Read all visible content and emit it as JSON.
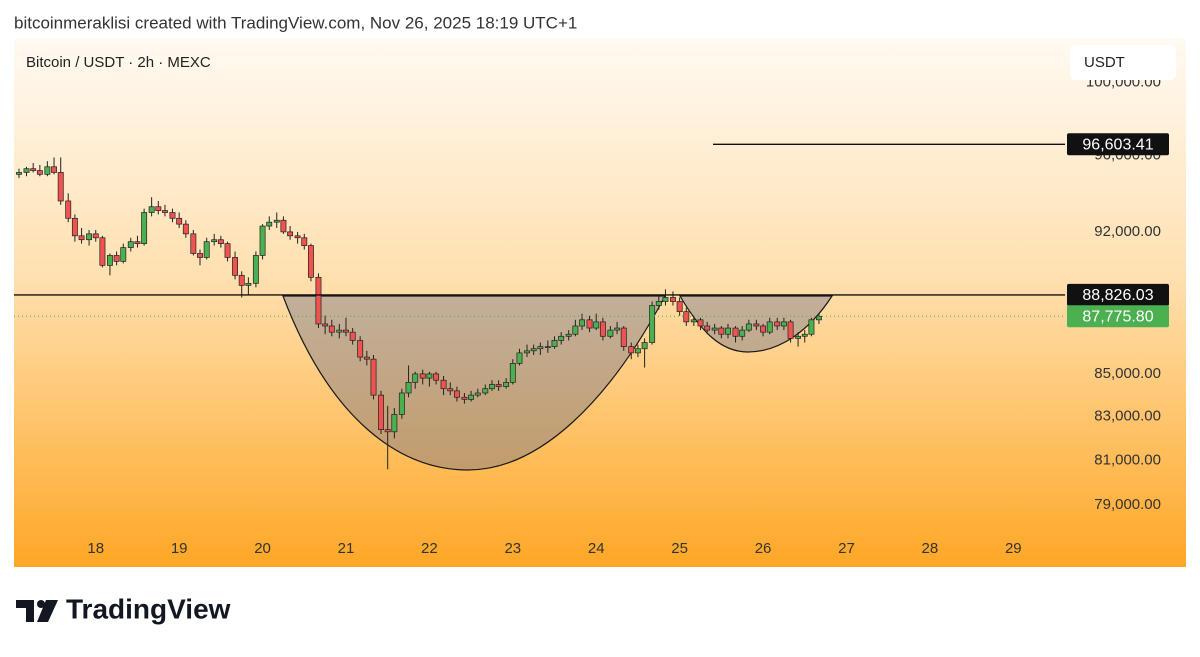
{
  "caption": "bitcoinmeraklisi created with TradingView.com, Nov 26, 2025 18:19 UTC+1",
  "brand": "TradingView",
  "chart_data": {
    "type": "candlestick",
    "title": "Bitcoin / USDT · 2h · MEXC",
    "currency": "USDT",
    "log_scale": true,
    "grid": false,
    "colors": {
      "up": "#4caf50",
      "down": "#ef5350",
      "outline": "#222222"
    },
    "xlim": [
      17.02,
      29.62
    ],
    "xticks": [
      18,
      19,
      20,
      21,
      22,
      23,
      24,
      25,
      26,
      27,
      28,
      29
    ],
    "ylim": [
      77700,
      102500
    ],
    "yticks": [
      {
        "value": 100000,
        "label": "100,000.00"
      },
      {
        "value": 96000,
        "label": "96,000.00"
      },
      {
        "value": 92000,
        "label": "92,000.00"
      },
      {
        "value": 85000,
        "label": "85,000.00"
      },
      {
        "value": 83000,
        "label": "83,000.00"
      },
      {
        "value": 81000,
        "label": "81,000.00"
      },
      {
        "value": 79000,
        "label": "79,000.00"
      }
    ],
    "lines": [
      {
        "value": 96603.41,
        "label": "96,603.41"
      },
      {
        "value": 88826.03,
        "label": "88,826.03"
      }
    ],
    "last_price": {
      "value": 87775.8,
      "label": "87,775.80"
    },
    "x": [
      17.08,
      17.17,
      17.25,
      17.33,
      17.42,
      17.5,
      17.58,
      17.67,
      17.75,
      17.83,
      17.92,
      18,
      18.08,
      18.17,
      18.25,
      18.33,
      18.42,
      18.5,
      18.58,
      18.67,
      18.75,
      18.83,
      18.92,
      19,
      19.08,
      19.17,
      19.25,
      19.33,
      19.42,
      19.5,
      19.58,
      19.67,
      19.75,
      19.83,
      19.92,
      20,
      20.08,
      20.17,
      20.25,
      20.33,
      20.42,
      20.5,
      20.58,
      20.67,
      20.75,
      20.83,
      20.92,
      21,
      21.08,
      21.17,
      21.25,
      21.33,
      21.42,
      21.5,
      21.58,
      21.67,
      21.75,
      21.83,
      21.92,
      22,
      22.08,
      22.17,
      22.25,
      22.33,
      22.42,
      22.5,
      22.58,
      22.67,
      22.75,
      22.83,
      22.92,
      23,
      23.08,
      23.17,
      23.25,
      23.33,
      23.42,
      23.5,
      23.58,
      23.67,
      23.75,
      23.83,
      23.92,
      24,
      24.08,
      24.17,
      24.25,
      24.33,
      24.42,
      24.5,
      24.58,
      24.67,
      24.75,
      24.83,
      24.92,
      25,
      25.08,
      25.17,
      25.25,
      25.33,
      25.42,
      25.5,
      25.58,
      25.67,
      25.75,
      25.83,
      25.92,
      26,
      26.08,
      26.17,
      26.25,
      26.33,
      26.42,
      26.5,
      26.58,
      26.67
    ],
    "ohlc": [
      [
        95000,
        95300,
        94800,
        95100
      ],
      [
        95100,
        95400,
        94900,
        95300
      ],
      [
        95300,
        95600,
        95100,
        95200
      ],
      [
        95200,
        95500,
        94900,
        95000
      ],
      [
        95000,
        95700,
        94900,
        95400
      ],
      [
        95400,
        95900,
        95000,
        95100
      ],
      [
        95100,
        95900,
        93400,
        93600
      ],
      [
        93600,
        94000,
        92500,
        92700
      ],
      [
        92700,
        92900,
        91500,
        91800
      ],
      [
        91800,
        92200,
        91400,
        91600
      ],
      [
        91600,
        92100,
        91300,
        91900
      ],
      [
        91900,
        92100,
        91500,
        91700
      ],
      [
        91700,
        91800,
        90200,
        90300
      ],
      [
        90300,
        90900,
        89800,
        90800
      ],
      [
        90800,
        91000,
        90300,
        90500
      ],
      [
        90500,
        91400,
        90400,
        91200
      ],
      [
        91200,
        91700,
        91000,
        91500
      ],
      [
        91500,
        91800,
        91200,
        91400
      ],
      [
        91400,
        93200,
        91300,
        93000
      ],
      [
        93000,
        93800,
        92800,
        93300
      ],
      [
        93300,
        93600,
        92900,
        93100
      ],
      [
        93100,
        93400,
        92800,
        93000
      ],
      [
        93000,
        93200,
        92500,
        92700
      ],
      [
        92700,
        93000,
        92200,
        92400
      ],
      [
        92400,
        92600,
        91700,
        91900
      ],
      [
        91900,
        92100,
        90800,
        90900
      ],
      [
        90900,
        91100,
        90300,
        90700
      ],
      [
        90700,
        91700,
        90600,
        91500
      ],
      [
        91500,
        91900,
        91300,
        91600
      ],
      [
        91600,
        91800,
        91200,
        91400
      ],
      [
        91400,
        91500,
        90500,
        90700
      ],
      [
        90700,
        91000,
        89600,
        89800
      ],
      [
        89800,
        90000,
        88700,
        89300
      ],
      [
        89300,
        89700,
        88800,
        89400
      ],
      [
        89400,
        91000,
        89200,
        90800
      ],
      [
        90800,
        92400,
        90600,
        92300
      ],
      [
        92300,
        92800,
        92100,
        92500
      ],
      [
        92500,
        93000,
        92200,
        92600
      ],
      [
        92600,
        92800,
        91900,
        92000
      ],
      [
        92000,
        92300,
        91600,
        91800
      ],
      [
        91800,
        92000,
        91400,
        91700
      ],
      [
        91700,
        91900,
        91100,
        91300
      ],
      [
        91300,
        91400,
        89500,
        89700
      ],
      [
        89700,
        89900,
        87200,
        87400
      ],
      [
        87400,
        87800,
        86900,
        87300
      ],
      [
        87300,
        87600,
        86800,
        87000
      ],
      [
        87000,
        87400,
        86700,
        87100
      ],
      [
        87100,
        87700,
        86800,
        87000
      ],
      [
        87000,
        87200,
        86400,
        86600
      ],
      [
        86600,
        86800,
        85600,
        85800
      ],
      [
        85800,
        86100,
        85400,
        85700
      ],
      [
        85700,
        85900,
        83800,
        84000
      ],
      [
        84000,
        84200,
        82200,
        82400
      ],
      [
        82400,
        83500,
        80600,
        82300
      ],
      [
        82300,
        83400,
        82000,
        83100
      ],
      [
        83100,
        84300,
        82900,
        84100
      ],
      [
        84100,
        85400,
        83900,
        84600
      ],
      [
        84600,
        85100,
        84300,
        85000
      ],
      [
        85000,
        85200,
        84500,
        84800
      ],
      [
        84800,
        85100,
        84400,
        85000
      ],
      [
        85000,
        85100,
        84500,
        84700
      ],
      [
        84700,
        84900,
        84000,
        84300
      ],
      [
        84300,
        84600,
        84000,
        84200
      ],
      [
        84200,
        84400,
        83700,
        83900
      ],
      [
        83900,
        84100,
        83600,
        83800
      ],
      [
        83800,
        84200,
        83700,
        84000
      ],
      [
        84000,
        84300,
        83900,
        84100
      ],
      [
        84100,
        84500,
        84000,
        84300
      ],
      [
        84300,
        84700,
        84200,
        84500
      ],
      [
        84500,
        84700,
        84200,
        84400
      ],
      [
        84400,
        84800,
        84300,
        84600
      ],
      [
        84600,
        85700,
        84500,
        85500
      ],
      [
        85500,
        86200,
        85400,
        86000
      ],
      [
        86000,
        86400,
        85800,
        86100
      ],
      [
        86100,
        86400,
        85900,
        86200
      ],
      [
        86200,
        86500,
        85900,
        86300
      ],
      [
        86300,
        86600,
        86000,
        86300
      ],
      [
        86300,
        86800,
        86200,
        86600
      ],
      [
        86600,
        87000,
        86400,
        86800
      ],
      [
        86800,
        87100,
        86600,
        86900
      ],
      [
        86900,
        87600,
        86800,
        87300
      ],
      [
        87300,
        87900,
        87100,
        87600
      ],
      [
        87600,
        87800,
        87000,
        87200
      ],
      [
        87200,
        87900,
        87100,
        87500
      ],
      [
        87500,
        87700,
        86600,
        86800
      ],
      [
        86800,
        87300,
        86700,
        87100
      ],
      [
        87100,
        87500,
        86900,
        87200
      ],
      [
        87200,
        87300,
        86100,
        86300
      ],
      [
        86300,
        86500,
        85700,
        86000
      ],
      [
        86000,
        86400,
        85800,
        86200
      ],
      [
        86200,
        86700,
        85300,
        86500
      ],
      [
        86500,
        88500,
        86400,
        88300
      ],
      [
        88300,
        88800,
        88100,
        88500
      ],
      [
        88500,
        89100,
        88300,
        88700
      ],
      [
        88700,
        89000,
        88300,
        88500
      ],
      [
        88500,
        88700,
        87800,
        88000
      ],
      [
        88000,
        88200,
        87300,
        87500
      ],
      [
        87500,
        87800,
        87300,
        87600
      ],
      [
        87600,
        87700,
        87100,
        87300
      ],
      [
        87300,
        87500,
        86900,
        87100
      ],
      [
        87100,
        87400,
        86900,
        87200
      ],
      [
        87200,
        87300,
        86700,
        86900
      ],
      [
        86900,
        87400,
        86700,
        87200
      ],
      [
        87200,
        87300,
        86500,
        86800
      ],
      [
        86800,
        87300,
        86600,
        87100
      ],
      [
        87100,
        87600,
        87000,
        87400
      ],
      [
        87400,
        87600,
        87100,
        87300
      ],
      [
        87300,
        87400,
        86800,
        87000
      ],
      [
        87000,
        87700,
        86900,
        87500
      ],
      [
        87500,
        87700,
        87100,
        87300
      ],
      [
        87300,
        87700,
        87100,
        87500
      ],
      [
        87500,
        87600,
        86500,
        86700
      ],
      [
        86700,
        87000,
        86300,
        86800
      ],
      [
        86800,
        87100,
        86500,
        86900
      ],
      [
        86900,
        87700,
        86800,
        87600
      ],
      [
        87600,
        87900,
        87400,
        87775.8
      ]
    ]
  }
}
